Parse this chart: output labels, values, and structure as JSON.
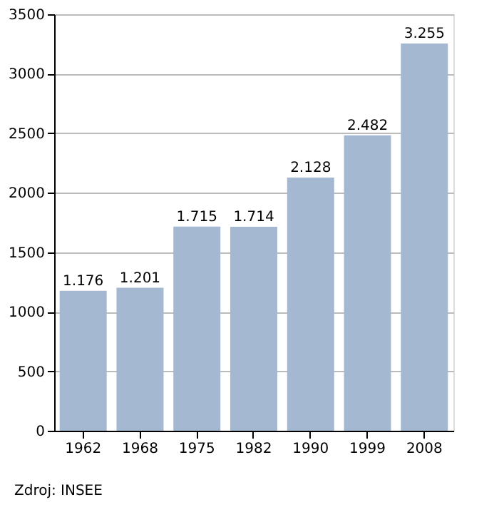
{
  "chart_data": {
    "type": "bar",
    "categories": [
      "1962",
      "1968",
      "1975",
      "1982",
      "1990",
      "1999",
      "2008"
    ],
    "values": [
      1176,
      1201,
      1715,
      1714,
      2128,
      2482,
      3255
    ],
    "value_labels": [
      "1.176",
      "1.201",
      "1.715",
      "1.714",
      "2.128",
      "2.482",
      "3.255"
    ],
    "color": "#a4b8d2",
    "ylim": [
      0,
      3500
    ],
    "yticks": [
      0,
      500,
      1000,
      1500,
      2000,
      2500,
      3000,
      3500
    ],
    "grid": "y",
    "annotations": [
      "Zdroj: INSEE"
    ]
  }
}
